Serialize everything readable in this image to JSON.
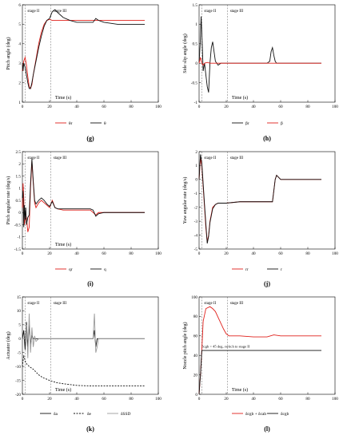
{
  "chart_data": [
    {
      "tag": "(g)",
      "type": "line",
      "xlabel": "Time (s)",
      "ylabel": "Pitch angle (deg)",
      "xlim": [
        0,
        100
      ],
      "ylim": [
        1,
        6
      ],
      "xticks": [
        "0",
        "20",
        "40",
        "60",
        "80",
        "100"
      ],
      "yticks": [
        "1",
        "2",
        "3",
        "4",
        "5",
        "6"
      ],
      "stage_lines": [
        2,
        21
      ],
      "stages": [
        "stage II",
        "stage III"
      ],
      "series": [
        {
          "name": "θr",
          "color": "#e0201b",
          "x": [
            0,
            1,
            2,
            3,
            4,
            5,
            6,
            7,
            8,
            10,
            12,
            14,
            16,
            18,
            20,
            22,
            25,
            30,
            40,
            50,
            55,
            60,
            70,
            80,
            90
          ],
          "y": [
            2.6,
            3.1,
            3.3,
            2.9,
            2.3,
            1.8,
            1.7,
            1.9,
            2.4,
            3.2,
            4.0,
            4.6,
            5.0,
            5.2,
            5.25,
            5.2,
            5.2,
            5.2,
            5.2,
            5.2,
            5.2,
            5.2,
            5.2,
            5.2,
            5.2
          ]
        },
        {
          "name": "θ",
          "color": "#111111",
          "x": [
            0,
            0.5,
            1,
            2,
            3,
            4,
            5,
            6,
            7,
            8,
            10,
            12,
            14,
            16,
            18,
            20,
            22,
            24,
            26,
            30,
            35,
            40,
            50,
            52,
            54,
            56,
            60,
            70,
            80,
            90
          ],
          "y": [
            3.0,
            2.6,
            3.0,
            2.8,
            2.4,
            2.0,
            1.7,
            1.7,
            2.0,
            2.4,
            3.1,
            3.8,
            4.4,
            4.9,
            5.2,
            5.3,
            5.65,
            5.75,
            5.6,
            5.35,
            5.2,
            5.1,
            5.1,
            5.1,
            5.3,
            5.2,
            5.1,
            5.0,
            5.0,
            5.0
          ]
        }
      ]
    },
    {
      "tag": "(h)",
      "type": "line",
      "xlabel": "Time (s)",
      "ylabel": "Side slip angle (deg)",
      "xlim": [
        0,
        100
      ],
      "ylim": [
        -1,
        1.5
      ],
      "xticks": [
        "0",
        "20",
        "40",
        "60",
        "80",
        "100"
      ],
      "yticks": [
        "-1",
        "-0.5",
        "0",
        "0.5",
        "1",
        "1.5"
      ],
      "stage_lines": [
        2,
        21
      ],
      "stages": [
        "stage II",
        "stage III"
      ],
      "series": [
        {
          "name": "βr",
          "color": "#111111",
          "x": [
            0,
            0.8,
            1.5,
            2.2,
            3,
            4,
            5,
            6,
            7,
            8,
            9,
            10,
            11,
            12,
            14,
            16,
            18,
            20,
            30,
            50,
            52,
            53,
            54,
            55,
            56,
            57,
            60,
            70,
            80,
            90
          ],
          "y": [
            0,
            0.5,
            1.2,
            0.6,
            -0.2,
            0.0,
            -0.3,
            -0.6,
            -0.75,
            0.0,
            0.4,
            0.55,
            0.3,
            0.05,
            -0.05,
            0.0,
            0.0,
            0.0,
            0.0,
            0.0,
            0.05,
            0.3,
            0.4,
            0.2,
            0.05,
            0.0,
            0.0,
            0.0,
            0.0,
            0.0
          ]
        },
        {
          "name": "β",
          "color": "#e0201b",
          "x": [
            0,
            1,
            2,
            3,
            4,
            6,
            8,
            10,
            20,
            40,
            60,
            80,
            90
          ],
          "y": [
            0.0,
            0.15,
            0.0,
            -0.05,
            0.0,
            0.02,
            0.0,
            0.0,
            0.0,
            0.0,
            0.0,
            0.0,
            0.0
          ]
        }
      ]
    },
    {
      "tag": "(i)",
      "type": "line",
      "xlabel": "Time (s)",
      "ylabel": "Pitch angular rate (deg/s)",
      "xlim": [
        0,
        100
      ],
      "ylim": [
        -1.5,
        2.5
      ],
      "xticks": [
        "0",
        "20",
        "40",
        "60",
        "80",
        "100"
      ],
      "yticks": [
        "-1.5",
        "-1",
        "-0.5",
        "0",
        "0.5",
        "1",
        "1.5",
        "2",
        "2.5"
      ],
      "stage_lines": [
        2,
        21
      ],
      "stages": [
        "stage II",
        "stage III"
      ],
      "series": [
        {
          "name": "qr",
          "color": "#e0201b",
          "x": [
            0,
            0.5,
            1,
            1.5,
            2,
            3,
            4,
            5,
            6,
            7,
            8,
            9,
            10,
            12,
            14,
            16,
            18,
            20,
            22,
            24,
            26,
            30,
            40,
            50,
            54,
            56,
            60,
            70,
            80,
            90
          ],
          "y": [
            0.2,
            1.2,
            0.6,
            -0.5,
            -0.3,
            -0.2,
            -0.8,
            -0.6,
            1.0,
            2.1,
            1.2,
            0.4,
            0.2,
            0.4,
            0.5,
            0.4,
            0.3,
            0.2,
            0.5,
            0.2,
            0.15,
            0.1,
            0.1,
            0.1,
            -0.1,
            0.0,
            0.0,
            0.0,
            0.0,
            0.0
          ]
        },
        {
          "name": "q",
          "color": "#111111",
          "x": [
            0,
            0.5,
            1,
            1.5,
            2,
            2.5,
            3,
            4,
            5,
            6,
            7,
            8,
            9,
            10,
            12,
            14,
            16,
            18,
            20,
            22,
            24,
            26,
            30,
            40,
            50,
            52,
            54,
            56,
            60,
            70,
            80,
            90
          ],
          "y": [
            0.6,
            0.9,
            -0.6,
            0.3,
            -0.3,
            0.2,
            -0.5,
            -0.2,
            -0.1,
            1.2,
            2.2,
            1.3,
            0.5,
            0.35,
            0.5,
            0.6,
            0.5,
            0.35,
            0.25,
            0.45,
            0.2,
            0.15,
            0.15,
            0.15,
            0.15,
            0.1,
            -0.15,
            -0.05,
            0.0,
            0.0,
            0.0,
            0.0
          ]
        }
      ]
    },
    {
      "tag": "(j)",
      "type": "line",
      "xlabel": "",
      "ylabel": "Yaw angular rate (deg/s)",
      "xlim": [
        0,
        100
      ],
      "ylim": [
        -5,
        2
      ],
      "xticks": [
        "0",
        "20",
        "40",
        "60",
        "80",
        "100"
      ],
      "yticks": [
        "-5",
        "-4",
        "-3",
        "-2",
        "-1",
        "0",
        "1",
        "2"
      ],
      "stage_lines": [
        2,
        21
      ],
      "stages": [
        "stage II",
        "stage III"
      ],
      "series": [
        {
          "name": "rr",
          "color": "#e0201b",
          "x": [
            0,
            1,
            2,
            3,
            4,
            5,
            6,
            7,
            8,
            10,
            12,
            14,
            16,
            20,
            30,
            40,
            50,
            54,
            56,
            57,
            58,
            60,
            70,
            80,
            90
          ],
          "y": [
            0.0,
            1.5,
            1.0,
            -0.5,
            -2.0,
            -3.5,
            -4.5,
            -4.0,
            -3.0,
            -2.0,
            -1.8,
            -1.7,
            -1.7,
            -1.7,
            -1.6,
            -1.6,
            -1.6,
            -1.6,
            0.0,
            0.3,
            0.2,
            0.0,
            0.0,
            0.0,
            0.0
          ]
        },
        {
          "name": "r",
          "color": "#111111",
          "x": [
            0,
            1,
            2,
            3,
            4,
            5,
            6,
            7,
            8,
            10,
            12,
            14,
            16,
            20,
            30,
            40,
            50,
            54,
            56,
            57,
            58,
            60,
            70,
            80,
            90
          ],
          "y": [
            0.0,
            1.8,
            1.2,
            -0.3,
            -1.8,
            -3.2,
            -4.6,
            -4.1,
            -3.1,
            -2.1,
            -1.8,
            -1.7,
            -1.7,
            -1.7,
            -1.6,
            -1.6,
            -1.6,
            -1.6,
            0.0,
            0.3,
            0.2,
            0.0,
            0.0,
            0.0,
            0.0
          ]
        }
      ]
    },
    {
      "tag": "(k)",
      "type": "line",
      "xlabel": "Time (s)",
      "ylabel": "Actuator (deg)",
      "xlim": [
        0,
        100
      ],
      "ylim": [
        -20,
        15
      ],
      "xticks": [
        "0",
        "20",
        "40",
        "60",
        "80",
        "100"
      ],
      "yticks": [
        "-20",
        "-15",
        "-10",
        "-5",
        "0",
        "5",
        "10",
        "15"
      ],
      "stage_lines": [
        2,
        21
      ],
      "stages": [
        "stage II",
        "stage III"
      ],
      "series": [
        {
          "name": "δa",
          "color": "#111111",
          "dash": "",
          "x": [
            0,
            1,
            2,
            3,
            4,
            5,
            6,
            7,
            8,
            9,
            10,
            12,
            20,
            40,
            50,
            52,
            53,
            54,
            55,
            56,
            60,
            80,
            90
          ],
          "y": [
            0,
            3,
            -4,
            6,
            -3,
            5,
            -2,
            1,
            0,
            0,
            0,
            0,
            0,
            0,
            0,
            0,
            3,
            -3,
            0,
            0,
            0,
            0,
            0
          ]
        },
        {
          "name": "δe",
          "color": "#111111",
          "dash": "2,1.5",
          "x": [
            0,
            1,
            2,
            3,
            5,
            8,
            10,
            12,
            15,
            20,
            25,
            30,
            40,
            50,
            60,
            70,
            80,
            90
          ],
          "y": [
            -10,
            -6,
            -8,
            -9,
            -10,
            -11,
            -12,
            -13,
            -14,
            -15,
            -15.8,
            -16.2,
            -16.8,
            -17,
            -17,
            -17,
            -17,
            -17
          ]
        },
        {
          "name": "δSSD",
          "color": "#9a9a9a",
          "dash": "",
          "x": [
            0,
            2,
            3,
            4,
            5,
            6,
            7,
            8,
            9,
            10,
            12,
            14,
            20,
            50,
            52,
            53,
            54,
            55,
            56,
            58,
            60,
            80,
            90
          ],
          "y": [
            0,
            0,
            5,
            -7,
            9,
            -5,
            4,
            -3,
            1,
            -1,
            0,
            0,
            0,
            0,
            0,
            9,
            -5,
            -3,
            0,
            0,
            0,
            0,
            0
          ]
        }
      ]
    },
    {
      "tag": "(l)",
      "type": "line",
      "xlabel": "Time (s)",
      "ylabel": "Nozzle pitch angle (deg)",
      "xlim": [
        0,
        100
      ],
      "ylim": [
        0,
        100
      ],
      "xticks": [
        "0",
        "20",
        "40",
        "60",
        "80",
        "100"
      ],
      "yticks": [
        "0",
        "20",
        "40",
        "60",
        "80",
        "100"
      ],
      "stage_lines": [
        2,
        21
      ],
      "stages": [
        "stage II",
        "stage III"
      ],
      "annotation": "δcgb > 45 deg, switch to stage II",
      "series": [
        {
          "name": "δcgb + δcab",
          "color": "#e0201b",
          "x": [
            0,
            1,
            2,
            3,
            5,
            8,
            10,
            12,
            15,
            18,
            20,
            22,
            25,
            30,
            40,
            50,
            55,
            60,
            70,
            80,
            90
          ],
          "y": [
            0,
            20,
            45,
            75,
            88,
            90,
            88,
            85,
            76,
            67,
            62,
            60,
            60,
            60,
            59,
            59,
            61,
            60,
            60,
            60,
            60
          ]
        },
        {
          "name": "δcgb",
          "color": "#111111",
          "x": [
            0,
            1,
            2,
            3,
            5,
            10,
            20,
            40,
            60,
            80,
            90
          ],
          "y": [
            0,
            20,
            45,
            45,
            45,
            45,
            45,
            45,
            45,
            45,
            45
          ]
        }
      ]
    }
  ]
}
